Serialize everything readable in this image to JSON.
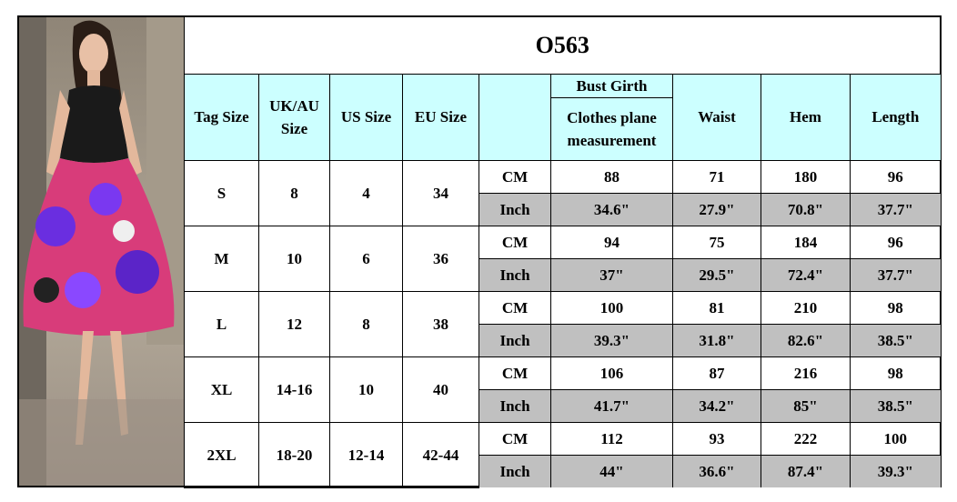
{
  "title": "O563",
  "headers": {
    "tag_size": "Tag Size",
    "uk_au_size": "UK/AU Size",
    "us_size": "US Size",
    "eu_size": "EU Size",
    "bust_girth": "Bust Girth",
    "bust_note": "Clothes plane measurement",
    "waist": "Waist",
    "hem": "Hem",
    "length": "Length"
  },
  "rows": [
    {
      "tag": "S",
      "uk_au": "8",
      "us": "4",
      "eu": "34",
      "cm": {
        "unit": "CM",
        "values": [
          "88",
          "71",
          "180",
          "96"
        ]
      },
      "inch": {
        "unit": "Inch",
        "values": [
          "34.6\"",
          "27.9\"",
          "70.8\"",
          "37.7\""
        ]
      }
    },
    {
      "tag": "M",
      "uk_au": "10",
      "us": "6",
      "eu": "36",
      "cm": {
        "unit": "CM",
        "values": [
          "94",
          "75",
          "184",
          "96"
        ]
      },
      "inch": {
        "unit": "Inch",
        "values": [
          "37\"",
          "29.5\"",
          "72.4\"",
          "37.7\""
        ]
      }
    },
    {
      "tag": "L",
      "uk_au": "12",
      "us": "8",
      "eu": "38",
      "cm": {
        "unit": "CM",
        "values": [
          "100",
          "81",
          "210",
          "98"
        ]
      },
      "inch": {
        "unit": "Inch",
        "values": [
          "39.3\"",
          "31.8\"",
          "82.6\"",
          "38.5\""
        ]
      }
    },
    {
      "tag": "XL",
      "uk_au": "14-16",
      "us": "10",
      "eu": "40",
      "cm": {
        "unit": "CM",
        "values": [
          "106",
          "87",
          "216",
          "98"
        ]
      },
      "inch": {
        "unit": "Inch",
        "values": [
          "41.7\"",
          "34.2\"",
          "85\"",
          "38.5\""
        ]
      }
    },
    {
      "tag": "2XL",
      "uk_au": "18-20",
      "us": "12-14",
      "eu": "42-44",
      "cm": {
        "unit": "CM",
        "values": [
          "112",
          "93",
          "222",
          "100"
        ]
      },
      "inch": {
        "unit": "Inch",
        "values": [
          "44\"",
          "36.6\"",
          "87.4\"",
          "39.3\""
        ]
      }
    }
  ]
}
